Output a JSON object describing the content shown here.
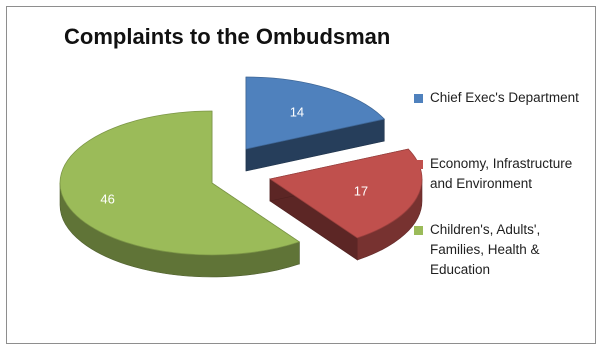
{
  "chart_data": {
    "type": "pie",
    "title": "Complaints to the Ombudsman",
    "categories": [
      "Chief Exec's Department",
      "Economy, Infrastructure and Environment",
      "Children's, Adults', Families, Health & Education"
    ],
    "legend_lines": [
      "Chief Exec's Department",
      "Economy, Infrastructure\nand Environment",
      "Children's, Adults',\nFamilies, Health &\nEducation"
    ],
    "values": [
      14,
      17,
      46
    ],
    "colors": [
      "#4f81bd",
      "#c0504d",
      "#9bbb59"
    ],
    "exploded": true,
    "three_d": true,
    "legend_position": "right",
    "data_labels": [
      "14",
      "17",
      "46"
    ]
  }
}
